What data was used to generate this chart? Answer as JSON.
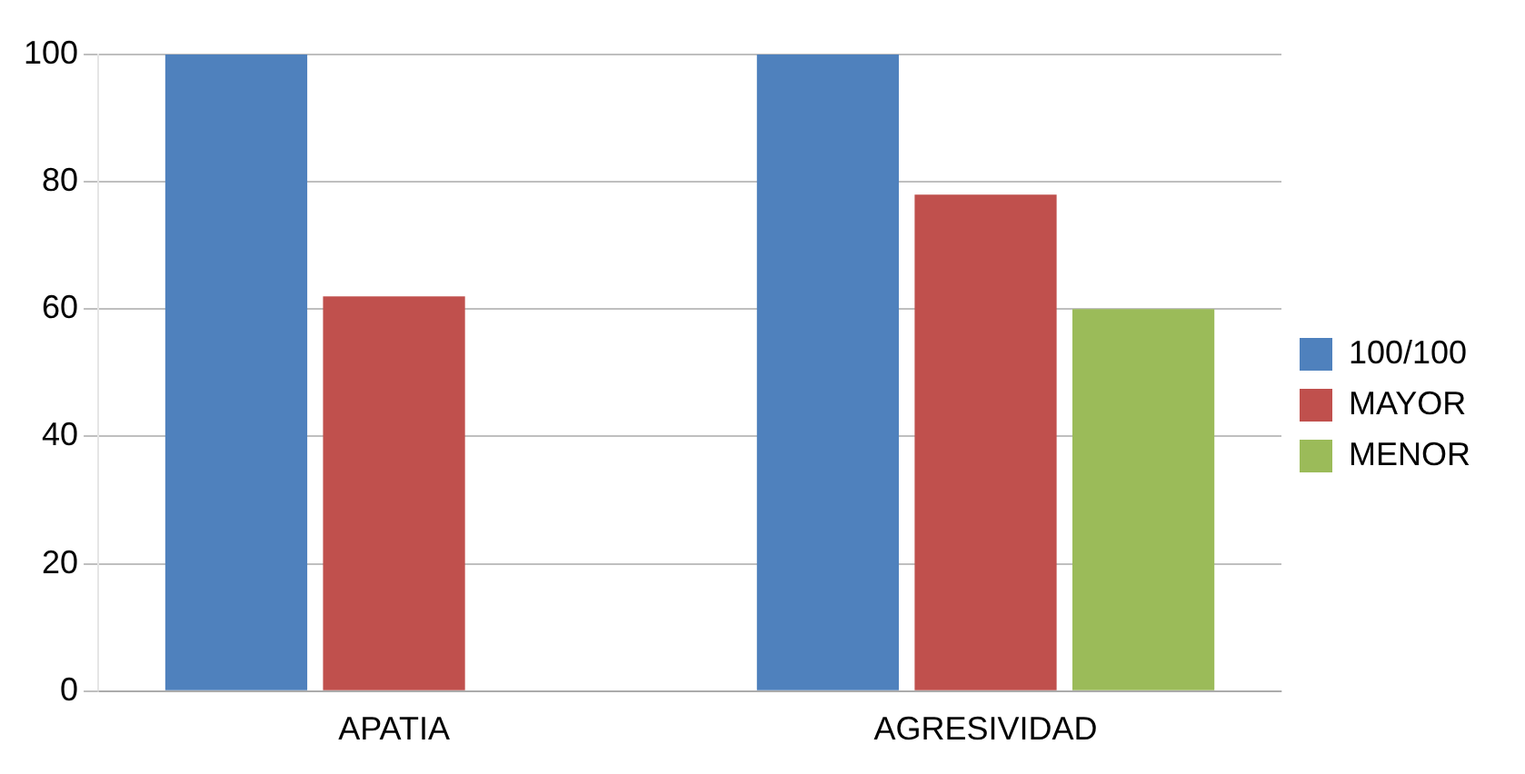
{
  "chart_data": {
    "type": "bar",
    "categories": [
      "APATIA",
      "AGRESIVIDAD"
    ],
    "series": [
      {
        "name": "100/100",
        "color": "#4f81bd",
        "values": [
          100,
          100
        ]
      },
      {
        "name": "MAYOR",
        "color": "#c0504d",
        "values": [
          62,
          78
        ]
      },
      {
        "name": "MENOR",
        "color": "#9bbb59",
        "values": [
          0,
          60
        ]
      }
    ],
    "ylim": [
      0,
      100
    ],
    "yticks": [
      0,
      20,
      40,
      60,
      80,
      100
    ],
    "grid": "y",
    "legend": "right"
  }
}
